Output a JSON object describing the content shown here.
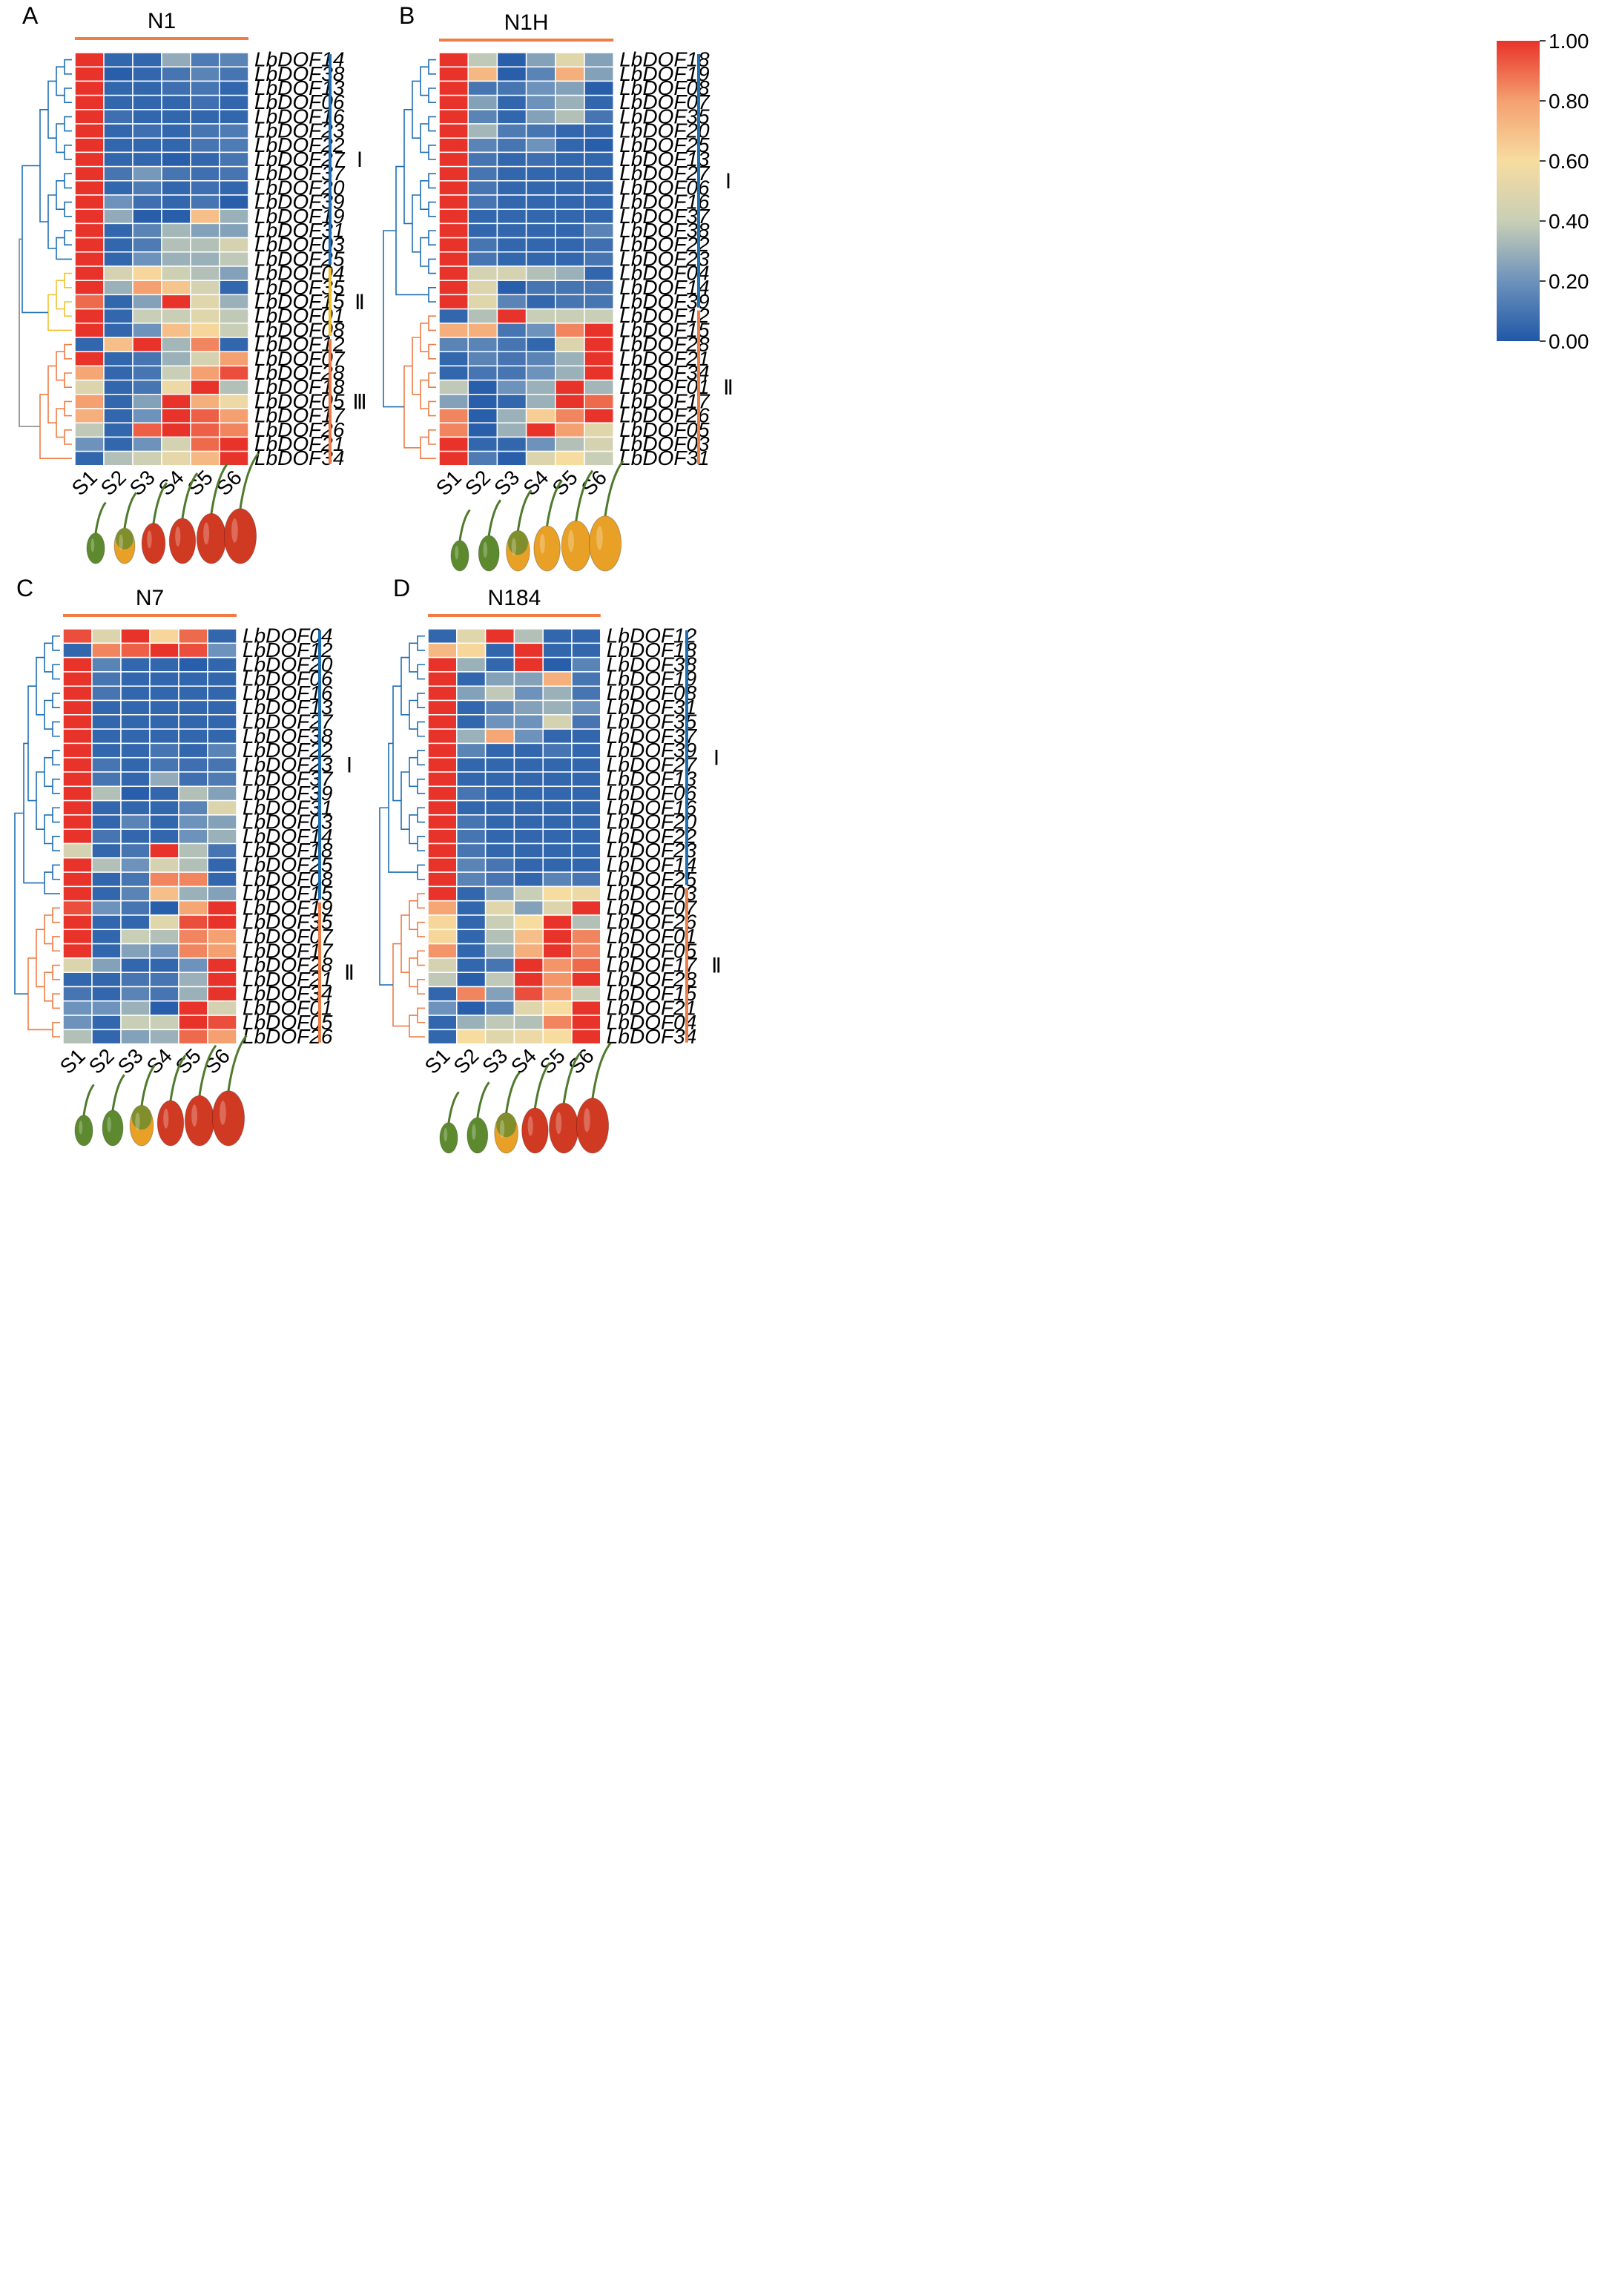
{
  "colorbar": {
    "ticks": [
      "1.00",
      "0.80",
      "0.60",
      "0.40",
      "0.20",
      "0.00"
    ],
    "colors": [
      "#2058a8",
      "#6d92bb",
      "#c9cfb6",
      "#f7dca0",
      "#f4a070",
      "#e8332a"
    ]
  },
  "chart_data": [
    {
      "type": "heatmap",
      "letter": "A",
      "title": "N1",
      "columns": [
        "S1",
        "S2",
        "S3",
        "S4",
        "S5",
        "S6"
      ],
      "rows": [
        "LbDOF14",
        "LbDOF38",
        "LbDOF13",
        "LbDOF06",
        "LbDOF16",
        "LbDOF23",
        "LbDOF22",
        "LbDOF27",
        "LbDOF37",
        "LbDOF20",
        "LbDOF39",
        "LbDOF19",
        "LbDOF31",
        "LbDOF03",
        "LbDOF25",
        "LbDOF04",
        "LbDOF35",
        "LbDOF15",
        "LbDOF01",
        "LbDOF08",
        "LbDOF12",
        "LbDOF07",
        "LbDOF28",
        "LbDOF18",
        "LbDOF05",
        "LbDOF17",
        "LbDOF26",
        "LbDOF21",
        "LbDOF34"
      ],
      "values": [
        [
          1.0,
          0.05,
          0.05,
          0.28,
          0.12,
          0.15
        ],
        [
          1.0,
          0.02,
          0.05,
          0.1,
          0.15,
          0.1
        ],
        [
          1.0,
          0.05,
          0.05,
          0.08,
          0.1,
          0.05
        ],
        [
          1.0,
          0.05,
          0.05,
          0.05,
          0.08,
          0.05
        ],
        [
          1.0,
          0.08,
          0.05,
          0.05,
          0.05,
          0.05
        ],
        [
          1.0,
          0.05,
          0.08,
          0.05,
          0.1,
          0.12
        ],
        [
          1.0,
          0.05,
          0.05,
          0.05,
          0.1,
          0.12
        ],
        [
          1.0,
          0.05,
          0.05,
          0.02,
          0.05,
          0.1
        ],
        [
          1.0,
          0.1,
          0.22,
          0.1,
          0.08,
          0.1
        ],
        [
          1.0,
          0.05,
          0.12,
          0.05,
          0.08,
          0.05
        ],
        [
          1.0,
          0.2,
          0.08,
          0.05,
          0.1,
          0.02
        ],
        [
          1.0,
          0.28,
          0.02,
          0.02,
          0.7,
          0.3
        ],
        [
          1.0,
          0.05,
          0.15,
          0.32,
          0.25,
          0.25
        ],
        [
          1.0,
          0.05,
          0.12,
          0.35,
          0.35,
          0.45
        ],
        [
          1.0,
          0.05,
          0.2,
          0.3,
          0.3,
          0.38
        ],
        [
          1.0,
          0.45,
          0.62,
          0.42,
          0.35,
          0.25
        ],
        [
          1.0,
          0.3,
          0.8,
          0.68,
          0.45,
          0.05
        ],
        [
          0.9,
          0.05,
          0.25,
          1.0,
          0.5,
          0.3
        ],
        [
          1.0,
          0.05,
          0.4,
          0.4,
          0.5,
          0.38
        ],
        [
          1.0,
          0.05,
          0.2,
          0.7,
          0.62,
          0.4
        ],
        [
          0.05,
          0.7,
          1.0,
          0.32,
          0.85,
          0.05
        ],
        [
          1.0,
          0.05,
          0.1,
          0.3,
          0.45,
          0.8
        ],
        [
          0.78,
          0.05,
          0.1,
          0.4,
          0.8,
          0.95
        ],
        [
          0.48,
          0.05,
          0.1,
          0.55,
          1.0,
          0.35
        ],
        [
          0.8,
          0.05,
          0.25,
          1.0,
          0.75,
          0.55
        ],
        [
          0.75,
          0.05,
          0.2,
          1.0,
          0.92,
          0.8
        ],
        [
          0.38,
          0.05,
          0.92,
          1.0,
          0.92,
          0.85
        ],
        [
          0.2,
          0.05,
          0.2,
          0.45,
          0.9,
          1.0
        ],
        [
          0.05,
          0.35,
          0.42,
          0.52,
          0.72,
          1.0
        ]
      ],
      "groups": [
        {
          "label": "Ⅰ",
          "color": "#1f6fb4",
          "count": 15
        },
        {
          "label": "Ⅱ",
          "color": "#f2c230",
          "count": 5
        },
        {
          "label": "Ⅲ",
          "color": "#ee7d46",
          "count": 9
        }
      ]
    },
    {
      "type": "heatmap",
      "letter": "B",
      "title": "N1H",
      "columns": [
        "S1",
        "S2",
        "S3",
        "S4",
        "S5",
        "S6"
      ],
      "rows": [
        "LbDOF18",
        "LbDOF19",
        "LbDOF08",
        "LbDOF07",
        "LbDOF35",
        "LbDOF20",
        "LbDOF25",
        "LbDOF13",
        "LbDOF27",
        "LbDOF06",
        "LbDOF16",
        "LbDOF37",
        "LbDOF38",
        "LbDOF22",
        "LbDOF23",
        "LbDOF04",
        "LbDOF14",
        "LbDOF39",
        "LbDOF12",
        "LbDOF15",
        "LbDOF28",
        "LbDOF21",
        "LbDOF34",
        "LbDOF01",
        "LbDOF17",
        "LbDOF26",
        "LbDOF05",
        "LbDOF03",
        "LbDOF31"
      ],
      "values": [
        [
          1.0,
          0.38,
          0.02,
          0.25,
          0.5,
          0.25
        ],
        [
          1.0,
          0.72,
          0.02,
          0.15,
          0.75,
          0.25
        ],
        [
          1.0,
          0.1,
          0.1,
          0.2,
          0.25,
          0.02
        ],
        [
          1.0,
          0.25,
          0.05,
          0.2,
          0.3,
          0.05
        ],
        [
          1.0,
          0.15,
          0.05,
          0.25,
          0.35,
          0.1
        ],
        [
          1.0,
          0.32,
          0.12,
          0.1,
          0.05,
          0.05
        ],
        [
          1.0,
          0.15,
          0.1,
          0.2,
          0.05,
          0.02
        ],
        [
          1.0,
          0.1,
          0.05,
          0.08,
          0.05,
          0.05
        ],
        [
          1.0,
          0.1,
          0.05,
          0.05,
          0.05,
          0.05
        ],
        [
          1.0,
          0.1,
          0.05,
          0.05,
          0.05,
          0.05
        ],
        [
          1.0,
          0.1,
          0.05,
          0.05,
          0.05,
          0.05
        ],
        [
          1.0,
          0.05,
          0.05,
          0.05,
          0.05,
          0.05
        ],
        [
          1.0,
          0.05,
          0.05,
          0.05,
          0.05,
          0.15
        ],
        [
          1.0,
          0.1,
          0.05,
          0.05,
          0.05,
          0.08
        ],
        [
          1.0,
          0.1,
          0.05,
          0.05,
          0.05,
          0.1
        ],
        [
          1.0,
          0.45,
          0.45,
          0.35,
          0.3,
          0.05
        ],
        [
          1.0,
          0.48,
          0.02,
          0.1,
          0.1,
          0.1
        ],
        [
          1.0,
          0.5,
          0.15,
          0.05,
          0.1,
          0.1
        ],
        [
          0.05,
          0.35,
          1.0,
          0.4,
          0.4,
          0.4
        ],
        [
          0.75,
          0.75,
          0.1,
          0.2,
          0.85,
          1.0
        ],
        [
          0.15,
          0.15,
          0.1,
          0.05,
          0.48,
          1.0
        ],
        [
          0.05,
          0.15,
          0.1,
          0.15,
          0.3,
          1.0
        ],
        [
          0.05,
          0.1,
          0.1,
          0.2,
          0.3,
          1.0
        ],
        [
          0.38,
          0.02,
          0.2,
          0.3,
          1.0,
          0.32
        ],
        [
          0.25,
          0.02,
          0.05,
          0.3,
          1.0,
          0.9
        ],
        [
          0.85,
          0.02,
          0.3,
          0.65,
          0.85,
          1.0
        ],
        [
          0.85,
          0.02,
          0.3,
          1.0,
          0.8,
          0.5
        ],
        [
          1.0,
          0.05,
          0.05,
          0.2,
          0.35,
          0.45
        ],
        [
          1.0,
          0.12,
          0.02,
          0.48,
          0.6,
          0.4
        ]
      ],
      "groups": [
        {
          "label": "Ⅰ",
          "color": "#1f6fb4",
          "count": 18
        },
        {
          "label": "Ⅱ",
          "color": "#ee7d46",
          "count": 11
        }
      ]
    },
    {
      "type": "heatmap",
      "letter": "C",
      "title": "N7",
      "columns": [
        "S1",
        "S2",
        "S3",
        "S4",
        "S5",
        "S6"
      ],
      "rows": [
        "LbDOF04",
        "LbDOF12",
        "LbDOF20",
        "LbDOF06",
        "LbDOF16",
        "LbDOF13",
        "LbDOF27",
        "LbDOF38",
        "LbDOF22",
        "LbDOF23",
        "LbDOF37",
        "LbDOF39",
        "LbDOF31",
        "LbDOF03",
        "LbDOF14",
        "LbDOF18",
        "LbDOF25",
        "LbDOF08",
        "LbDOF15",
        "LbDOF19",
        "LbDOF35",
        "LbDOF07",
        "LbDOF17",
        "LbDOF28",
        "LbDOF21",
        "LbDOF34",
        "LbDOF01",
        "LbDOF05",
        "LbDOF26"
      ],
      "values": [
        [
          0.95,
          0.48,
          1.0,
          0.62,
          0.9,
          0.05
        ],
        [
          0.05,
          0.85,
          0.92,
          1.0,
          0.95,
          0.2
        ],
        [
          1.0,
          0.15,
          0.05,
          0.05,
          0.02,
          0.05
        ],
        [
          1.0,
          0.1,
          0.05,
          0.05,
          0.05,
          0.05
        ],
        [
          1.0,
          0.1,
          0.05,
          0.05,
          0.05,
          0.05
        ],
        [
          1.0,
          0.05,
          0.05,
          0.05,
          0.05,
          0.05
        ],
        [
          1.0,
          0.05,
          0.05,
          0.05,
          0.05,
          0.05
        ],
        [
          1.0,
          0.05,
          0.05,
          0.05,
          0.05,
          0.05
        ],
        [
          1.0,
          0.05,
          0.05,
          0.1,
          0.05,
          0.15
        ],
        [
          1.0,
          0.1,
          0.05,
          0.1,
          0.08,
          0.1
        ],
        [
          1.0,
          0.1,
          0.05,
          0.28,
          0.08,
          0.12
        ],
        [
          1.0,
          0.35,
          0.02,
          0.05,
          0.35,
          0.25
        ],
        [
          1.0,
          0.05,
          0.05,
          0.05,
          0.15,
          0.48
        ],
        [
          1.0,
          0.05,
          0.15,
          0.05,
          0.2,
          0.25
        ],
        [
          1.0,
          0.1,
          0.05,
          0.05,
          0.2,
          0.3
        ],
        [
          0.45,
          0.05,
          0.1,
          1.0,
          0.35,
          0.1
        ],
        [
          1.0,
          0.35,
          0.2,
          0.45,
          0.35,
          0.05
        ],
        [
          1.0,
          0.05,
          0.1,
          0.85,
          0.85,
          0.05
        ],
        [
          1.0,
          0.05,
          0.15,
          0.7,
          0.3,
          0.25
        ],
        [
          0.95,
          0.2,
          0.1,
          0.02,
          0.78,
          1.0
        ],
        [
          1.0,
          0.05,
          0.05,
          0.5,
          0.95,
          1.0
        ],
        [
          1.0,
          0.05,
          0.4,
          0.35,
          0.85,
          0.8
        ],
        [
          1.0,
          0.05,
          0.25,
          0.2,
          0.85,
          0.8
        ],
        [
          0.48,
          0.25,
          0.05,
          0.05,
          0.2,
          1.0
        ],
        [
          0.05,
          0.05,
          0.1,
          0.1,
          0.3,
          1.0
        ],
        [
          0.1,
          0.05,
          0.15,
          0.1,
          0.3,
          1.0
        ],
        [
          0.2,
          0.2,
          0.3,
          0.02,
          1.0,
          0.45
        ],
        [
          0.2,
          0.05,
          0.4,
          0.4,
          1.0,
          0.95
        ],
        [
          0.35,
          0.05,
          0.25,
          0.3,
          0.9,
          0.8
        ]
      ],
      "groups": [
        {
          "label": "Ⅰ",
          "color": "#1f6fb4",
          "count": 19
        },
        {
          "label": "Ⅱ",
          "color": "#ee7d46",
          "count": 10
        }
      ]
    },
    {
      "type": "heatmap",
      "letter": "D",
      "title": "N184",
      "columns": [
        "S1",
        "S2",
        "S3",
        "S4",
        "S5",
        "S6"
      ],
      "rows": [
        "LbDOF12",
        "LbDOF18",
        "LbDOF38",
        "LbDOF19",
        "LbDOF08",
        "LbDOF31",
        "LbDOF35",
        "LbDOF37",
        "LbDOF39",
        "LbDOF27",
        "LbDOF13",
        "LbDOF06",
        "LbDOF16",
        "LbDOF20",
        "LbDOF22",
        "LbDOF23",
        "LbDOF14",
        "LbDOF25",
        "LbDOF03",
        "LbDOF07",
        "LbDOF26",
        "LbDOF01",
        "LbDOF05",
        "LbDOF17",
        "LbDOF28",
        "LbDOF15",
        "LbDOF21",
        "LbDOF04",
        "LbDOF34"
      ],
      "values": [
        [
          0.05,
          0.5,
          1.0,
          0.35,
          0.05,
          0.05
        ],
        [
          0.72,
          0.62,
          0.05,
          1.0,
          0.05,
          0.05
        ],
        [
          1.0,
          0.3,
          0.05,
          1.0,
          0.02,
          0.15
        ],
        [
          1.0,
          0.05,
          0.25,
          0.25,
          0.75,
          0.1
        ],
        [
          1.0,
          0.25,
          0.38,
          0.2,
          0.3,
          0.1
        ],
        [
          1.0,
          0.05,
          0.15,
          0.25,
          0.3,
          0.2
        ],
        [
          1.0,
          0.05,
          0.2,
          0.2,
          0.45,
          0.1
        ],
        [
          1.0,
          0.3,
          0.78,
          0.2,
          0.05,
          0.05
        ],
        [
          1.0,
          0.15,
          0.05,
          0.05,
          0.1,
          0.05
        ],
        [
          1.0,
          0.05,
          0.05,
          0.05,
          0.05,
          0.05
        ],
        [
          1.0,
          0.05,
          0.05,
          0.05,
          0.05,
          0.05
        ],
        [
          1.0,
          0.1,
          0.05,
          0.05,
          0.05,
          0.05
        ],
        [
          1.0,
          0.05,
          0.05,
          0.05,
          0.05,
          0.05
        ],
        [
          1.0,
          0.1,
          0.05,
          0.05,
          0.05,
          0.05
        ],
        [
          1.0,
          0.1,
          0.05,
          0.05,
          0.05,
          0.05
        ],
        [
          1.0,
          0.1,
          0.05,
          0.05,
          0.05,
          0.05
        ],
        [
          1.0,
          0.15,
          0.1,
          0.05,
          0.05,
          0.05
        ],
        [
          1.0,
          0.15,
          0.1,
          0.05,
          0.15,
          0.1
        ],
        [
          1.0,
          0.05,
          0.25,
          0.4,
          0.6,
          0.55
        ],
        [
          0.78,
          0.05,
          0.5,
          0.25,
          0.48,
          1.0
        ],
        [
          0.62,
          0.05,
          0.4,
          0.6,
          1.0,
          0.35
        ],
        [
          0.62,
          0.05,
          0.35,
          0.7,
          1.0,
          0.85
        ],
        [
          0.82,
          0.05,
          0.3,
          0.75,
          1.0,
          0.85
        ],
        [
          0.45,
          0.05,
          0.1,
          1.0,
          0.82,
          0.9
        ],
        [
          0.38,
          0.02,
          0.38,
          1.0,
          0.82,
          1.0
        ],
        [
          0.05,
          0.85,
          0.25,
          0.95,
          0.8,
          0.4
        ],
        [
          0.2,
          0.02,
          0.15,
          0.5,
          0.6,
          1.0
        ],
        [
          0.05,
          0.3,
          0.38,
          0.35,
          0.85,
          1.0
        ],
        [
          0.05,
          0.6,
          0.5,
          0.55,
          0.6,
          1.0
        ]
      ],
      "groups": [
        {
          "label": "Ⅰ",
          "color": "#1f6fb4",
          "count": 18
        },
        {
          "label": "Ⅱ",
          "color": "#ee7d46",
          "count": 11
        }
      ]
    }
  ],
  "fruit_stages": [
    [
      "green-stage",
      "green-orange-stage",
      "red-stage",
      "red-stage",
      "red-stage",
      "red-stage"
    ],
    [
      "green-stage",
      "green-stage",
      "green-orange-stage",
      "orange-stage",
      "orange-stage",
      "orange-stage"
    ],
    [
      "green-stage",
      "green-stage",
      "green-orange-stage",
      "red-stage",
      "red-stage",
      "red-stage"
    ],
    [
      "green-stage",
      "green-stage",
      "green-orange-stage",
      "red-stage",
      "red-stage",
      "red-stage"
    ]
  ],
  "fruit_colors": {
    "green": "#5d8a2e",
    "orange": "#e8a026",
    "red": "#d13a22",
    "stem": "#4f7a2c"
  }
}
